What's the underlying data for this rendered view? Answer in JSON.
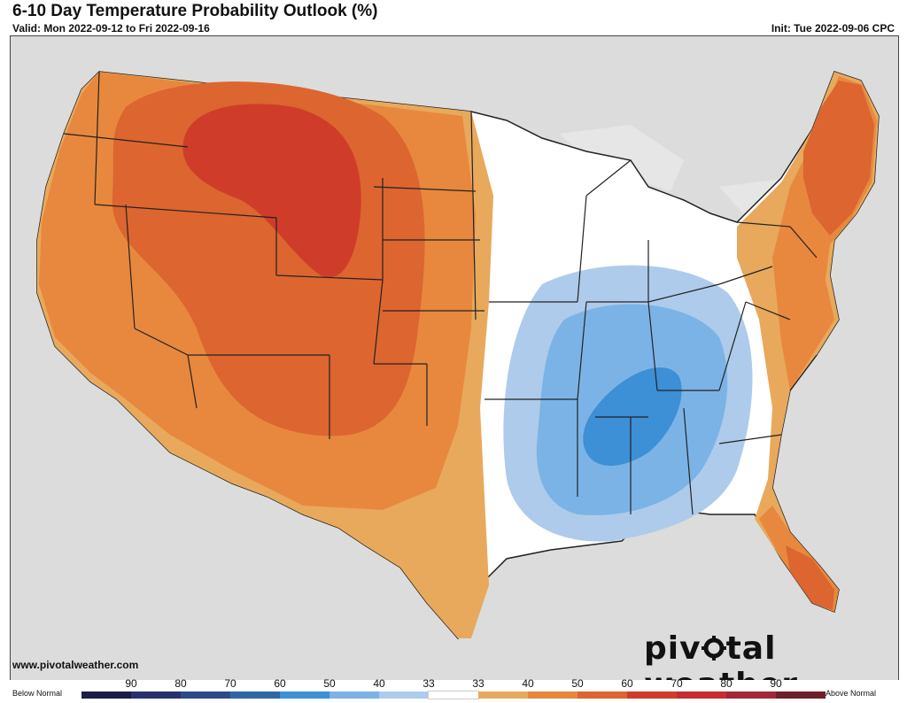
{
  "header": {
    "title": "6-10 Day Temperature Probability Outlook (%)",
    "valid": "Valid: Mon 2022-09-12 to Fri 2022-09-16",
    "init": "Init: Tue 2022-09-06 CPC"
  },
  "footer": {
    "website": "www.pivotalweather.com",
    "brand_left": "piv",
    "brand_right": "tal weather"
  },
  "legend": {
    "below_label": "Below Normal",
    "above_label": "Above Normal",
    "below_ticks": [
      "90",
      "80",
      "70",
      "60",
      "50",
      "40",
      "33"
    ],
    "above_ticks": [
      "33",
      "40",
      "50",
      "60",
      "70",
      "80",
      "90"
    ],
    "below_colors": [
      "#1c1c4a",
      "#28316e",
      "#2c4a8a",
      "#2f66a8",
      "#3d8fd6",
      "#7cb3e6",
      "#aecbeb"
    ],
    "above_colors": [
      "#e8a95c",
      "#e8883e",
      "#dc6530",
      "#cf3d2a",
      "#c72b33",
      "#a3263a",
      "#6e1f2a"
    ],
    "normal_color": "#ffffff"
  },
  "colors": {
    "background_land": "#d7d7d7",
    "water": "#d7d7d7",
    "above_40": "#e8a95c",
    "above_50": "#e8883e",
    "above_60": "#dc6530",
    "above_70": "#cf3d2a",
    "below_40": "#aecbeb",
    "below_50": "#7cb3e6",
    "below_60": "#3d8fd6"
  }
}
